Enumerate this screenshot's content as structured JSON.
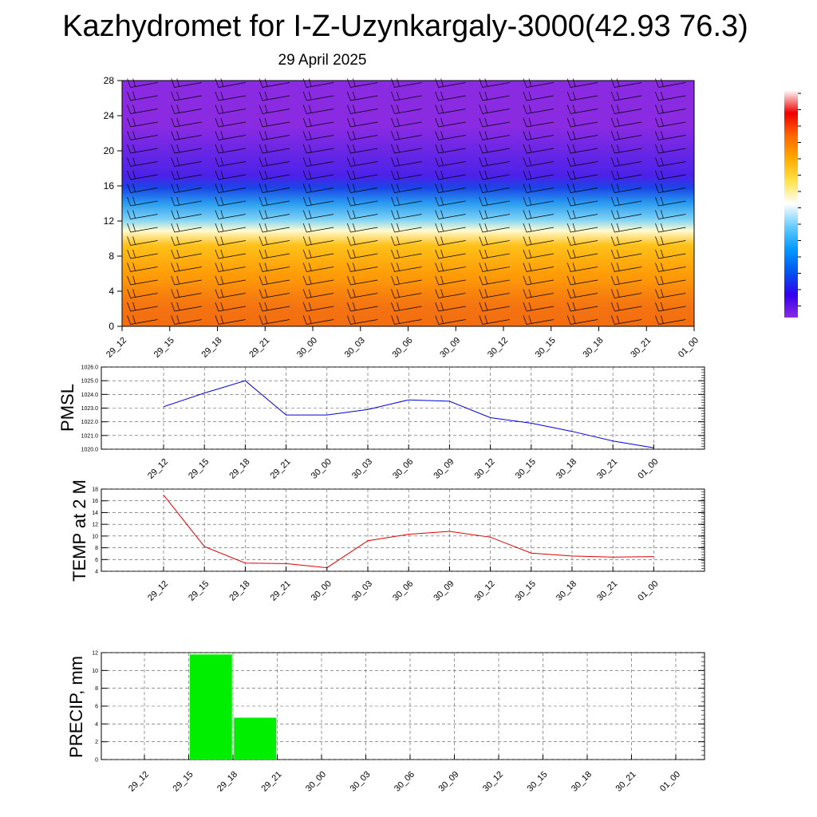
{
  "title": "Kazhydromet for I-Z-Uzynkargaly-3000(42.93 76.3)",
  "subtitle": "29 April 2025",
  "chart_data": [
    {
      "type": "heatmap",
      "name": "temperature cross-section with wind barbs",
      "x_ticks": [
        "29_12",
        "29_15",
        "29_18",
        "29_21",
        "30_00",
        "30_03",
        "30_06",
        "30_09",
        "30_12",
        "30_15",
        "30_18",
        "30_21",
        "01_00"
      ],
      "y_ticks": [
        0,
        4,
        8,
        12,
        16,
        20,
        24,
        28
      ],
      "ylim": [
        0,
        28
      ],
      "colorbar": {
        "colors": [
          "#ffffff",
          "#ee0000",
          "#ff6600",
          "#ffaa00",
          "#ffe34a",
          "#ffffff",
          "#66ccff",
          "#0099ff",
          "#0055ee",
          "#3300ee",
          "#8a2be2"
        ]
      },
      "bands": [
        {
          "y_from": 0,
          "y_to": 4,
          "color": "#f57a12"
        },
        {
          "y_from": 4,
          "y_to": 8,
          "color": "#ff9d07"
        },
        {
          "y_from": 8,
          "y_to": 10.5,
          "color": "#ffc11a"
        },
        {
          "y_from": 10.5,
          "y_to": 11.3,
          "color": "#fffbd0"
        },
        {
          "y_from": 11.3,
          "y_to": 13,
          "color": "#7fd3f5"
        },
        {
          "y_from": 13,
          "y_to": 15,
          "color": "#2a9cf0"
        },
        {
          "y_from": 15,
          "y_to": 16.6,
          "color": "#1a45e6"
        },
        {
          "y_from": 16.6,
          "y_to": 17.6,
          "color": "#4b22e8"
        },
        {
          "y_from": 17.6,
          "y_to": 28,
          "color": "#8a2be2"
        }
      ]
    },
    {
      "type": "line",
      "ylabel": "PMSL",
      "x": [
        "29_12",
        "29_15",
        "29_18",
        "29_21",
        "30_00",
        "30_03",
        "30_06",
        "30_09",
        "30_12",
        "30_15",
        "30_18",
        "30_21",
        "01_00"
      ],
      "y_ticks": [
        "1020.0",
        "1021.0",
        "1022.0",
        "1023.0",
        "1024.0",
        "1025.0",
        "1026.0"
      ],
      "ylim": [
        1020,
        1026
      ],
      "color": "#0000dd",
      "series": [
        {
          "values": [
            1023.1,
            1024.1,
            1025.0,
            1022.5,
            1022.5,
            1022.9,
            1023.6,
            1023.5,
            1022.3,
            1021.9,
            1021.3,
            1020.6,
            1020.1
          ]
        }
      ]
    },
    {
      "type": "line",
      "ylabel": "TEMP at 2 M",
      "x": [
        "29_12",
        "29_15",
        "29_18",
        "29_21",
        "30_00",
        "30_03",
        "30_06",
        "30_09",
        "30_12",
        "30_15",
        "30_18",
        "30_21",
        "01_00"
      ],
      "y_ticks": [
        "4",
        "6",
        "8",
        "10",
        "12",
        "14",
        "16",
        "18"
      ],
      "ylim": [
        4,
        18
      ],
      "color": "#dd0000",
      "series": [
        {
          "values": [
            17.0,
            8.2,
            5.4,
            5.3,
            4.6,
            9.2,
            10.3,
            10.8,
            9.8,
            7.1,
            6.6,
            6.4,
            6.5
          ]
        }
      ]
    },
    {
      "type": "bar",
      "ylabel": "PRECIP, mm",
      "categories": [
        "29_12",
        "29_15",
        "29_18",
        "29_21",
        "30_00",
        "30_03",
        "30_06",
        "30_09",
        "30_12",
        "30_15",
        "30_18",
        "30_21",
        "01_00"
      ],
      "y_ticks": [
        "0",
        "2",
        "4",
        "6",
        "8",
        "10",
        "12"
      ],
      "ylim": [
        0,
        12
      ],
      "color": "#00ee00",
      "values": [
        0,
        11.8,
        4.7,
        0,
        0,
        0,
        0,
        0,
        0,
        0,
        0,
        0,
        0
      ]
    }
  ]
}
